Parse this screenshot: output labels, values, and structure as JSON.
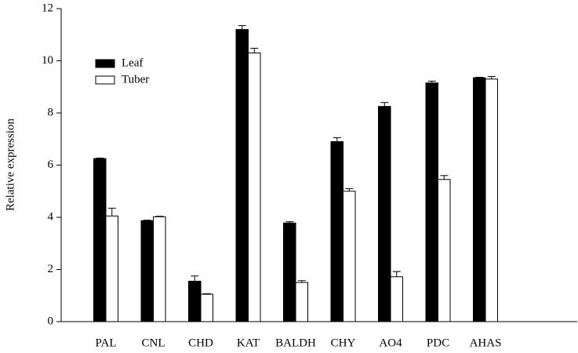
{
  "chart_data": {
    "type": "bar",
    "y_label": "Relative expression",
    "categories": [
      "PAL",
      "CNL",
      "CHD",
      "KAT",
      "BALDH",
      "CHY",
      "AO4",
      "PDC",
      "AHAS"
    ],
    "series": [
      {
        "name": "Leaf",
        "color": "#000000",
        "values": [
          6.25,
          3.87,
          1.55,
          11.2,
          3.78,
          6.9,
          8.25,
          9.15,
          9.35
        ],
        "errors": [
          0.02,
          0.02,
          0.2,
          0.15,
          0.05,
          0.15,
          0.15,
          0.07,
          0.02
        ]
      },
      {
        "name": "Tuber",
        "color": "#ffffff",
        "values": [
          4.05,
          4.02,
          1.05,
          10.3,
          1.5,
          5.0,
          1.72,
          5.45,
          9.3
        ],
        "errors": [
          0.3,
          0.02,
          0.02,
          0.18,
          0.07,
          0.1,
          0.2,
          0.15,
          0.1
        ]
      }
    ],
    "ylim": [
      0,
      12
    ],
    "yticks": [
      0,
      2,
      4,
      6,
      8,
      10,
      12
    ],
    "legend": "upper left"
  }
}
